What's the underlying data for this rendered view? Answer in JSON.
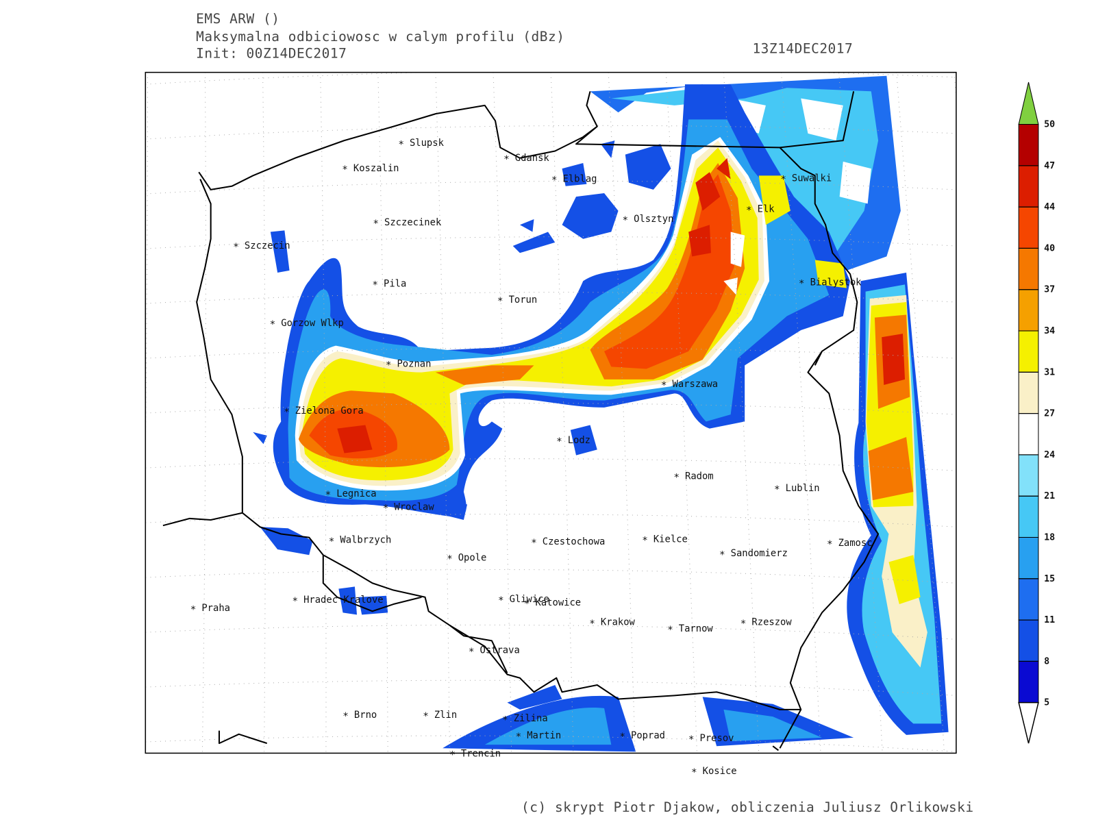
{
  "header": {
    "model": "EMS ARW ()",
    "title": "Maksymalna odbiciowosc w calym profilu (dBz)",
    "init": "Init: 00Z14DEC2017",
    "valid": "13Z14DEC2017"
  },
  "cities": [
    "Slupsk",
    "Koszalin",
    "Gdansk",
    "Elblag",
    "Szczecinek",
    "Olsztyn",
    "Suwalki",
    "Elk",
    "Szczecin",
    "Pila",
    "Torun",
    "Bialystok",
    "Gorzow Wlkp",
    "Poznan",
    "Warszawa",
    "Zielona Gora",
    "Lodz",
    "Radom",
    "Lublin",
    "Legnica",
    "Wroclaw",
    "Walbrzych",
    "Czestochowa",
    "Kielce",
    "Zamosc",
    "Opole",
    "Sandomierz",
    "Praha",
    "Hradec Kralove",
    "Gliwice",
    "Katowice",
    "Krakow",
    "Tarnow",
    "Rzeszow",
    "Ostrava",
    "Brno",
    "Zlin",
    "Zilina",
    "Martin",
    "Poprad",
    "Presov",
    "Trencin",
    "Kosice"
  ],
  "colorbar": {
    "levels": [
      5,
      8,
      11,
      15,
      18,
      21,
      24,
      27,
      31,
      34,
      37,
      40,
      44,
      47,
      50
    ],
    "colors": [
      "#0a0ad2",
      "#1450e6",
      "#1e6ef0",
      "#28a0f0",
      "#46c8f5",
      "#82e1fa",
      "#ffffff",
      "#faf0c8",
      "#f5f000",
      "#f5a000",
      "#f57800",
      "#f54600",
      "#dc1e00",
      "#b40000"
    ],
    "over_color": "#80d040",
    "under_color": "#ffffff"
  },
  "credit": "(c) skrypt Piotr Djakow, obliczenia Juliusz Orlikowski"
}
